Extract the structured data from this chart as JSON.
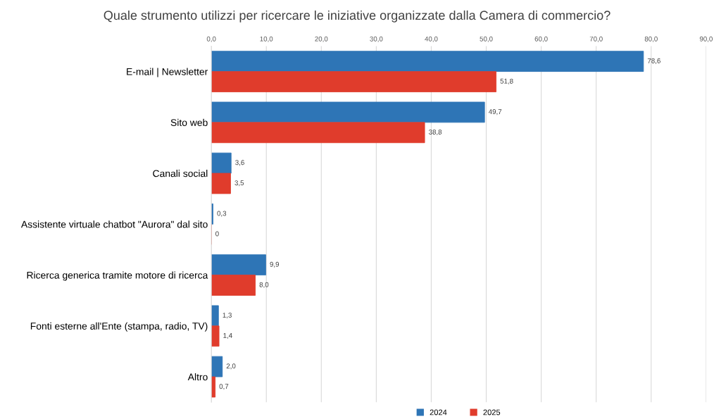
{
  "chart_data": {
    "type": "bar",
    "orientation": "horizontal",
    "title": "Quale strumento utilizzi per ricercare le iniziative organizzate dalla Camera di commercio?",
    "categories": [
      "E-mail | Newsletter",
      "Sito web",
      "Canali social",
      "Assistente virtuale chatbot \"Aurora\" dal sito",
      "Ricerca generica tramite motore di ricerca",
      "Fonti esterne all'Ente (stampa, radio, TV)",
      "Altro"
    ],
    "series": [
      {
        "name": "2024",
        "color": "#2e75b6",
        "values": [
          78.6,
          49.7,
          3.6,
          0.3,
          9.9,
          1.3,
          2.0
        ],
        "value_labels": [
          "78,6",
          "49,7",
          "3,6",
          "0,3",
          "9,9",
          "1,3",
          "2,0"
        ]
      },
      {
        "name": "2025",
        "color": "#e03c2c",
        "values": [
          51.8,
          38.8,
          3.5,
          0,
          8.0,
          1.4,
          0.7
        ],
        "value_labels": [
          "51,8",
          "38,8",
          "3,5",
          "0",
          "8,0",
          "1,4",
          "0,7"
        ]
      }
    ],
    "xlim": [
      0,
      90
    ],
    "xticks": [
      {
        "value": 0,
        "label": "0,0"
      },
      {
        "value": 10,
        "label": "10,0"
      },
      {
        "value": 20,
        "label": "20,0"
      },
      {
        "value": 30,
        "label": "30,0"
      },
      {
        "value": 40,
        "label": "40,0"
      },
      {
        "value": 50,
        "label": "50,0"
      },
      {
        "value": 60,
        "label": "60,0"
      },
      {
        "value": 70,
        "label": "70,0"
      },
      {
        "value": 80,
        "label": "80,0"
      },
      {
        "value": 90,
        "label": "90,0"
      }
    ],
    "grid": "x",
    "legend": "bottom"
  }
}
